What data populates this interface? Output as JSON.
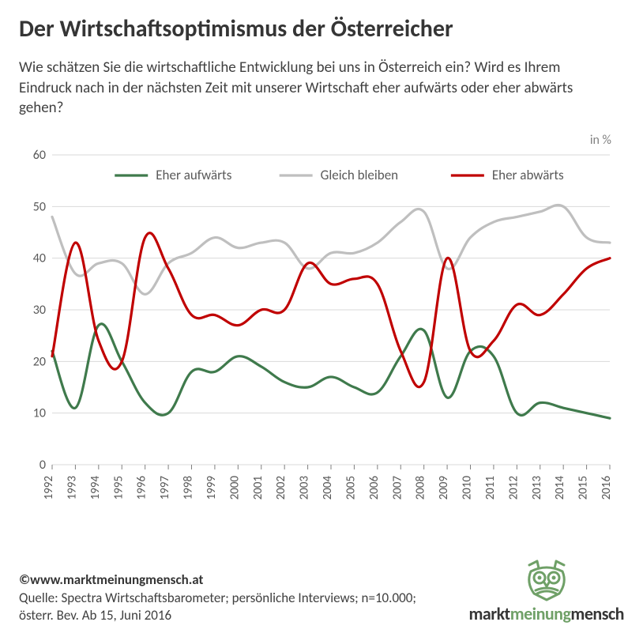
{
  "title": "Der Wirtschaftsoptimismus der Österreicher",
  "subtitle": "Wie schätzen Sie die wirtschaftliche Entwicklung bei uns in Österreich ein? Wird es Ihrem Eindruck nach in der nächsten Zeit mit unserer Wirtschaft eher aufwärts oder eher abwärts gehen?",
  "unit_label": "in %",
  "copyright": "©www.marktmeinungmensch.at",
  "source": "Quelle: Spectra Wirtschaftsbarometer; persönliche Interviews; n=10.000; österr. Bev. Ab 15, Juni 2016",
  "logo": {
    "p1": "markt",
    "p2": "meinung",
    "p3": "mensch"
  },
  "chart": {
    "type": "line",
    "background_color": "#ffffff",
    "grid_color": "#d9d9d9",
    "ylim": [
      0,
      60
    ],
    "ytick_step": 10,
    "yticks": [
      0,
      10,
      20,
      30,
      40,
      50,
      60
    ],
    "xlabels": [
      "1992",
      "1993",
      "1994",
      "1995",
      "1996",
      "1997",
      "1998",
      "1999",
      "2000",
      "2001",
      "2002",
      "2003",
      "2004",
      "2005",
      "2006",
      "2007",
      "2008",
      "2009",
      "2010",
      "2011",
      "2012",
      "2013",
      "2014",
      "2015",
      "2016"
    ],
    "line_width": 3.2,
    "label_fontsize": 16,
    "legend_fontsize": 17,
    "series": [
      {
        "name": "Eher aufwärts",
        "color": "#3f7a4c",
        "values": [
          22,
          11,
          27,
          20,
          12,
          10,
          18,
          18,
          21,
          19,
          16,
          15,
          17,
          15,
          14,
          21,
          26,
          13,
          22,
          21,
          10,
          12,
          11,
          10,
          9
        ]
      },
      {
        "name": "Gleich bleiben",
        "color": "#bfbfbf",
        "values": [
          48,
          37,
          39,
          39,
          33,
          39,
          41,
          44,
          42,
          43,
          43,
          38,
          41,
          41,
          43,
          47,
          49,
          38,
          44,
          47,
          48,
          49,
          50,
          44,
          43
        ]
      },
      {
        "name": "Eher abwärts",
        "color": "#c00000",
        "values": [
          21,
          43,
          24,
          20,
          44,
          38,
          29,
          29,
          27,
          30,
          30,
          39,
          35,
          36,
          35,
          22,
          16,
          40,
          22,
          24,
          31,
          29,
          33,
          38,
          40
        ]
      }
    ],
    "legend_order": [
      0,
      1,
      2
    ]
  }
}
